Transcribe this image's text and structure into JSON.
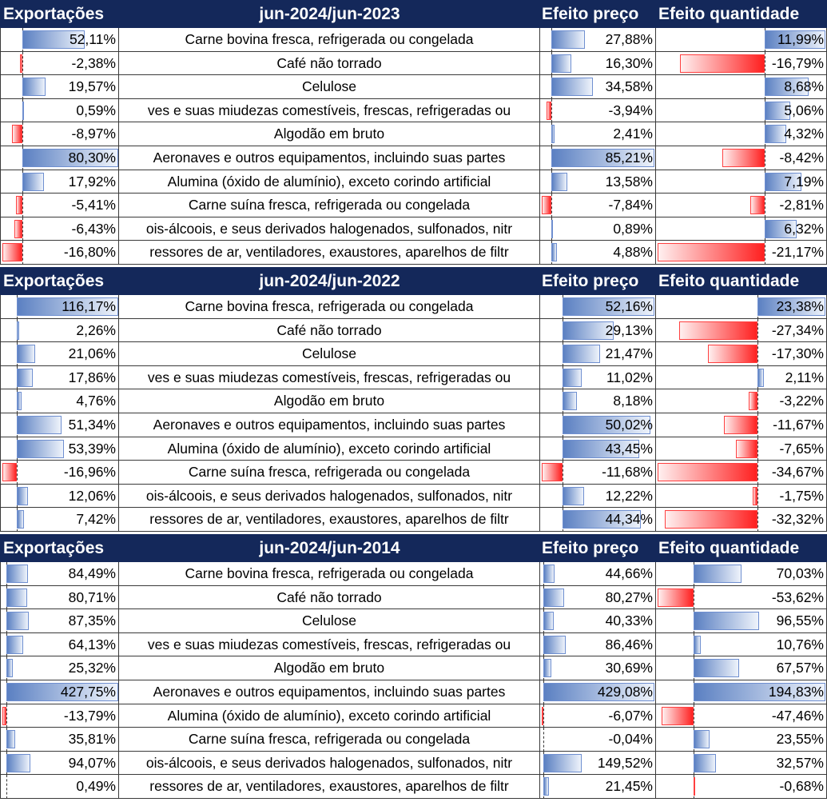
{
  "headers": {
    "exports": "Exportações",
    "price": "Efeito preço",
    "quantity": "Efeito quantidade"
  },
  "colors": {
    "header_bg": "#14285a",
    "positive_bar": "#5b80c2",
    "negative_bar": "#ff2020"
  },
  "sections": [
    {
      "period": "jun-2024/jun-2023",
      "rows": [
        {
          "product": "Carne bovina fresca, refrigerada ou congelada",
          "exports": "52,11%",
          "price": "27,88%",
          "quantity": "11,99%"
        },
        {
          "product": "Café não torrado",
          "exports": "-2,38%",
          "price": "16,30%",
          "quantity": "-16,79%"
        },
        {
          "product": "Celulose",
          "exports": "19,57%",
          "price": "34,58%",
          "quantity": "8,68%"
        },
        {
          "product": "ves e suas miudezas comestíveis, frescas, refrigeradas ou",
          "exports": "0,59%",
          "price": "-3,94%",
          "quantity": "5,06%"
        },
        {
          "product": "Algodão em bruto",
          "exports": "-8,97%",
          "price": "2,41%",
          "quantity": "4,32%"
        },
        {
          "product": "Aeronaves e outros equipamentos, incluindo suas partes",
          "exports": "80,30%",
          "price": "85,21%",
          "quantity": "-8,42%"
        },
        {
          "product": "Alumina (óxido de alumínio), exceto corindo artificial",
          "exports": "17,92%",
          "price": "13,58%",
          "quantity": "7,19%"
        },
        {
          "product": "Carne suína fresca, refrigerada ou congelada",
          "exports": "-5,41%",
          "price": "-7,84%",
          "quantity": "-2,81%"
        },
        {
          "product": "ois-álcoois, e seus derivados halogenados, sulfonados, nitr",
          "exports": "-6,43%",
          "price": "0,89%",
          "quantity": "6,32%"
        },
        {
          "product": "ressores de ar, ventiladores, exaustores, aparelhos de filtr",
          "exports": "-16,80%",
          "price": "4,88%",
          "quantity": "-21,17%"
        }
      ]
    },
    {
      "period": "jun-2024/jun-2022",
      "rows": [
        {
          "product": "Carne bovina fresca, refrigerada ou congelada",
          "exports": "116,17%",
          "price": "52,16%",
          "quantity": "23,38%"
        },
        {
          "product": "Café não torrado",
          "exports": "2,26%",
          "price": "29,13%",
          "quantity": "-27,34%"
        },
        {
          "product": "Celulose",
          "exports": "21,06%",
          "price": "21,47%",
          "quantity": "-17,30%"
        },
        {
          "product": "ves e suas miudezas comestíveis, frescas, refrigeradas ou",
          "exports": "17,86%",
          "price": "11,02%",
          "quantity": "2,11%"
        },
        {
          "product": "Algodão em bruto",
          "exports": "4,76%",
          "price": "8,18%",
          "quantity": "-3,22%"
        },
        {
          "product": "Aeronaves e outros equipamentos, incluindo suas partes",
          "exports": "51,34%",
          "price": "50,02%",
          "quantity": "-11,67%"
        },
        {
          "product": "Alumina (óxido de alumínio), exceto corindo artificial",
          "exports": "53,39%",
          "price": "43,45%",
          "quantity": "-7,65%"
        },
        {
          "product": "Carne suína fresca, refrigerada ou congelada",
          "exports": "-16,96%",
          "price": "-11,68%",
          "quantity": "-34,67%"
        },
        {
          "product": "ois-álcoois, e seus derivados halogenados, sulfonados, nitr",
          "exports": "12,06%",
          "price": "12,22%",
          "quantity": "-1,75%"
        },
        {
          "product": "ressores de ar, ventiladores, exaustores, aparelhos de filtr",
          "exports": "7,42%",
          "price": "44,34%",
          "quantity": "-32,32%"
        }
      ]
    },
    {
      "period": "jun-2024/jun-2014",
      "rows": [
        {
          "product": "Carne bovina fresca, refrigerada ou congelada",
          "exports": "84,49%",
          "price": "44,66%",
          "quantity": "70,03%"
        },
        {
          "product": "Café não torrado",
          "exports": "80,71%",
          "price": "80,27%",
          "quantity": "-53,62%"
        },
        {
          "product": "Celulose",
          "exports": "87,35%",
          "price": "40,33%",
          "quantity": "96,55%"
        },
        {
          "product": "ves e suas miudezas comestíveis, frescas, refrigeradas ou",
          "exports": "64,13%",
          "price": "86,46%",
          "quantity": "10,76%"
        },
        {
          "product": "Algodão em bruto",
          "exports": "25,32%",
          "price": "30,69%",
          "quantity": "67,57%"
        },
        {
          "product": "Aeronaves e outros equipamentos, incluindo suas partes",
          "exports": "427,75%",
          "price": "429,08%",
          "quantity": "194,83%"
        },
        {
          "product": "Alumina (óxido de alumínio), exceto corindo artificial",
          "exports": "-13,79%",
          "price": "-6,07%",
          "quantity": "-47,46%"
        },
        {
          "product": "Carne suína fresca, refrigerada ou congelada",
          "exports": "35,81%",
          "price": "-0,04%",
          "quantity": "23,55%"
        },
        {
          "product": "ois-álcoois, e seus derivados halogenados, sulfonados, nitr",
          "exports": "94,07%",
          "price": "149,52%",
          "quantity": "32,57%"
        },
        {
          "product": "ressores de ar, ventiladores, exaustores, aparelhos de filtr",
          "exports": "0,49%",
          "price": "21,45%",
          "quantity": "-0,68%"
        }
      ]
    }
  ]
}
